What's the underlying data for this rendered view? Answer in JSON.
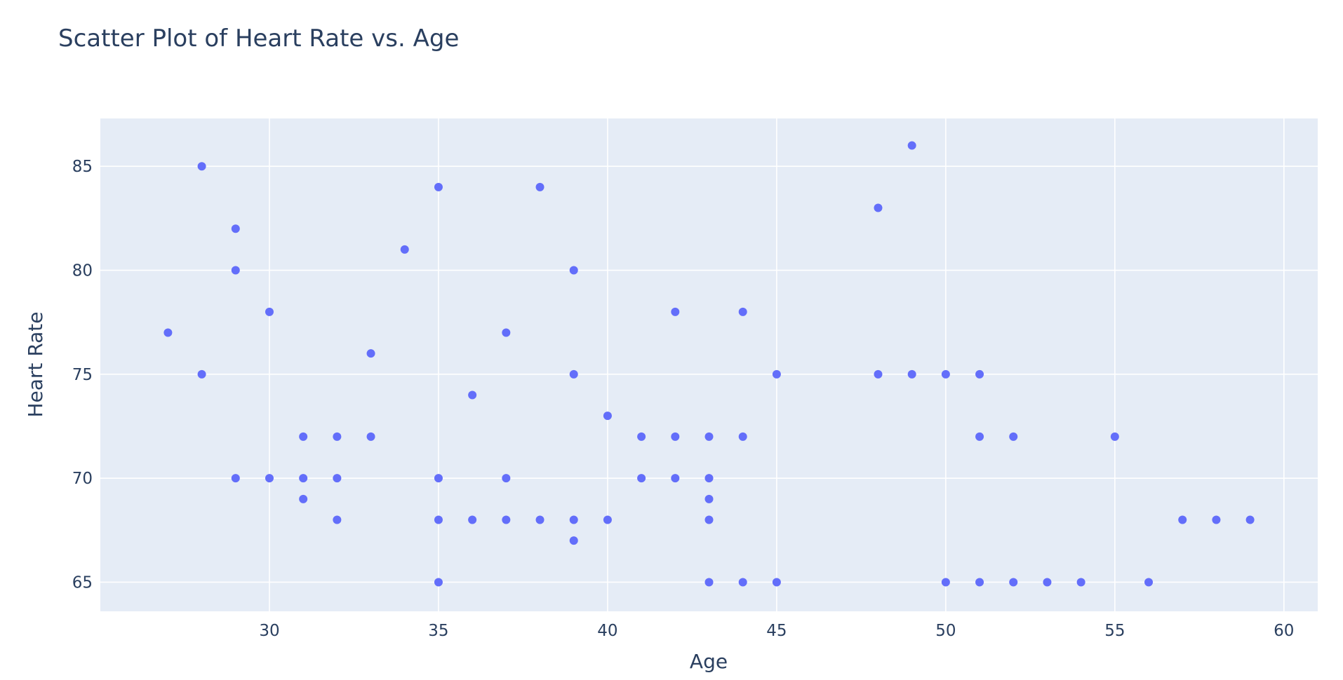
{
  "chart_data": {
    "type": "scatter",
    "title": "Scatter Plot of Heart Rate vs. Age",
    "xlabel": "Age",
    "ylabel": "Heart Rate",
    "xlim": [
      25,
      61
    ],
    "ylim": [
      63.6,
      87.3
    ],
    "xticks": [
      30,
      35,
      40,
      45,
      50,
      55,
      60
    ],
    "yticks": [
      65,
      70,
      75,
      80,
      85
    ],
    "grid": true,
    "colors": {
      "plot_bg": "#e5ecf6",
      "marker": "#636efa",
      "text": "#2a3f5f"
    },
    "series": [
      {
        "points": [
          [
            27,
            77
          ],
          [
            28,
            85
          ],
          [
            28,
            75
          ],
          [
            29,
            82
          ],
          [
            29,
            80
          ],
          [
            29,
            70
          ],
          [
            30,
            78
          ],
          [
            30,
            70
          ],
          [
            31,
            72
          ],
          [
            31,
            70
          ],
          [
            31,
            69
          ],
          [
            32,
            72
          ],
          [
            32,
            70
          ],
          [
            32,
            68
          ],
          [
            33,
            76
          ],
          [
            33,
            72
          ],
          [
            34,
            81
          ],
          [
            35,
            84
          ],
          [
            35,
            70
          ],
          [
            35,
            68
          ],
          [
            35,
            65
          ],
          [
            36,
            74
          ],
          [
            36,
            68
          ],
          [
            37,
            77
          ],
          [
            37,
            70
          ],
          [
            37,
            68
          ],
          [
            38,
            84
          ],
          [
            38,
            68
          ],
          [
            39,
            80
          ],
          [
            39,
            75
          ],
          [
            39,
            68
          ],
          [
            39,
            67
          ],
          [
            40,
            73
          ],
          [
            40,
            68
          ],
          [
            41,
            72
          ],
          [
            41,
            70
          ],
          [
            42,
            78
          ],
          [
            42,
            72
          ],
          [
            42,
            70
          ],
          [
            43,
            72
          ],
          [
            43,
            70
          ],
          [
            43,
            69
          ],
          [
            43,
            68
          ],
          [
            43,
            65
          ],
          [
            44,
            78
          ],
          [
            44,
            72
          ],
          [
            44,
            65
          ],
          [
            45,
            75
          ],
          [
            45,
            65
          ],
          [
            48,
            83
          ],
          [
            48,
            75
          ],
          [
            49,
            86
          ],
          [
            49,
            75
          ],
          [
            50,
            75
          ],
          [
            50,
            65
          ],
          [
            51,
            75
          ],
          [
            51,
            72
          ],
          [
            51,
            65
          ],
          [
            52,
            72
          ],
          [
            52,
            65
          ],
          [
            53,
            65
          ],
          [
            54,
            65
          ],
          [
            55,
            72
          ],
          [
            56,
            65
          ],
          [
            57,
            68
          ],
          [
            58,
            68
          ],
          [
            59,
            68
          ]
        ]
      }
    ]
  }
}
